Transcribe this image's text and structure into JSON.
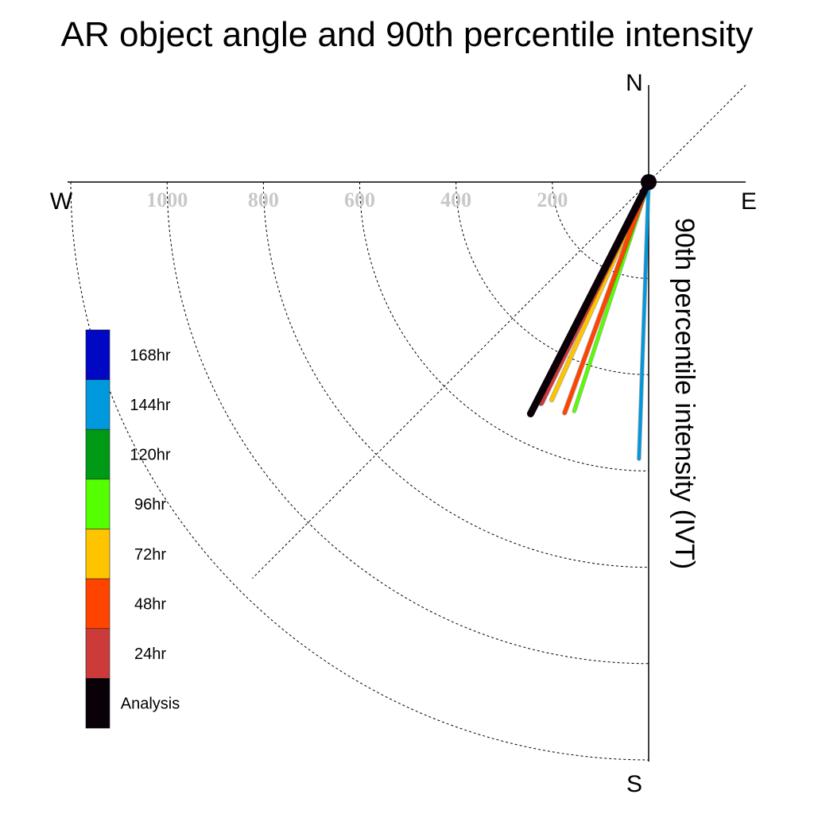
{
  "chart_data": {
    "type": "polar-vector",
    "title": "AR object angle and 90th percentile intensity",
    "ylabel": "90th percentile intensity (IVT)",
    "compass": {
      "north": "N",
      "south": "S",
      "east": "E",
      "west": "W"
    },
    "radial_ticks": [
      200,
      400,
      600,
      800,
      1000
    ],
    "radial_tick_labels": [
      "200",
      "400",
      "600",
      "800",
      "1000"
    ],
    "rmax": 1200,
    "grid": true,
    "legend_position": "left",
    "series": [
      {
        "name": "Analysis",
        "color": "#0a0008",
        "angle_deg": 207,
        "value": 540,
        "width": 9
      },
      {
        "name": "24hr",
        "color": "#cc3a3a",
        "angle_deg": 206,
        "value": 510,
        "width": 7
      },
      {
        "name": "48hr",
        "color": "#ff4400",
        "angle_deg": 200,
        "value": 510,
        "width": 5
      },
      {
        "name": "72hr",
        "color": "#ffc400",
        "angle_deg": 204,
        "value": 495,
        "width": 5
      },
      {
        "name": "96hr",
        "color": "#55ff00",
        "angle_deg": 198,
        "value": 500,
        "width": 4
      },
      {
        "name": "120hr",
        "color": "#009a16",
        "angle_deg": 0,
        "value": 0,
        "width": 4
      },
      {
        "name": "144hr",
        "color": "#0099dd",
        "angle_deg": 182,
        "value": 575,
        "width": 4
      },
      {
        "name": "168hr",
        "color": "#0008c4",
        "angle_deg": 0,
        "value": 0,
        "width": 4
      }
    ]
  }
}
